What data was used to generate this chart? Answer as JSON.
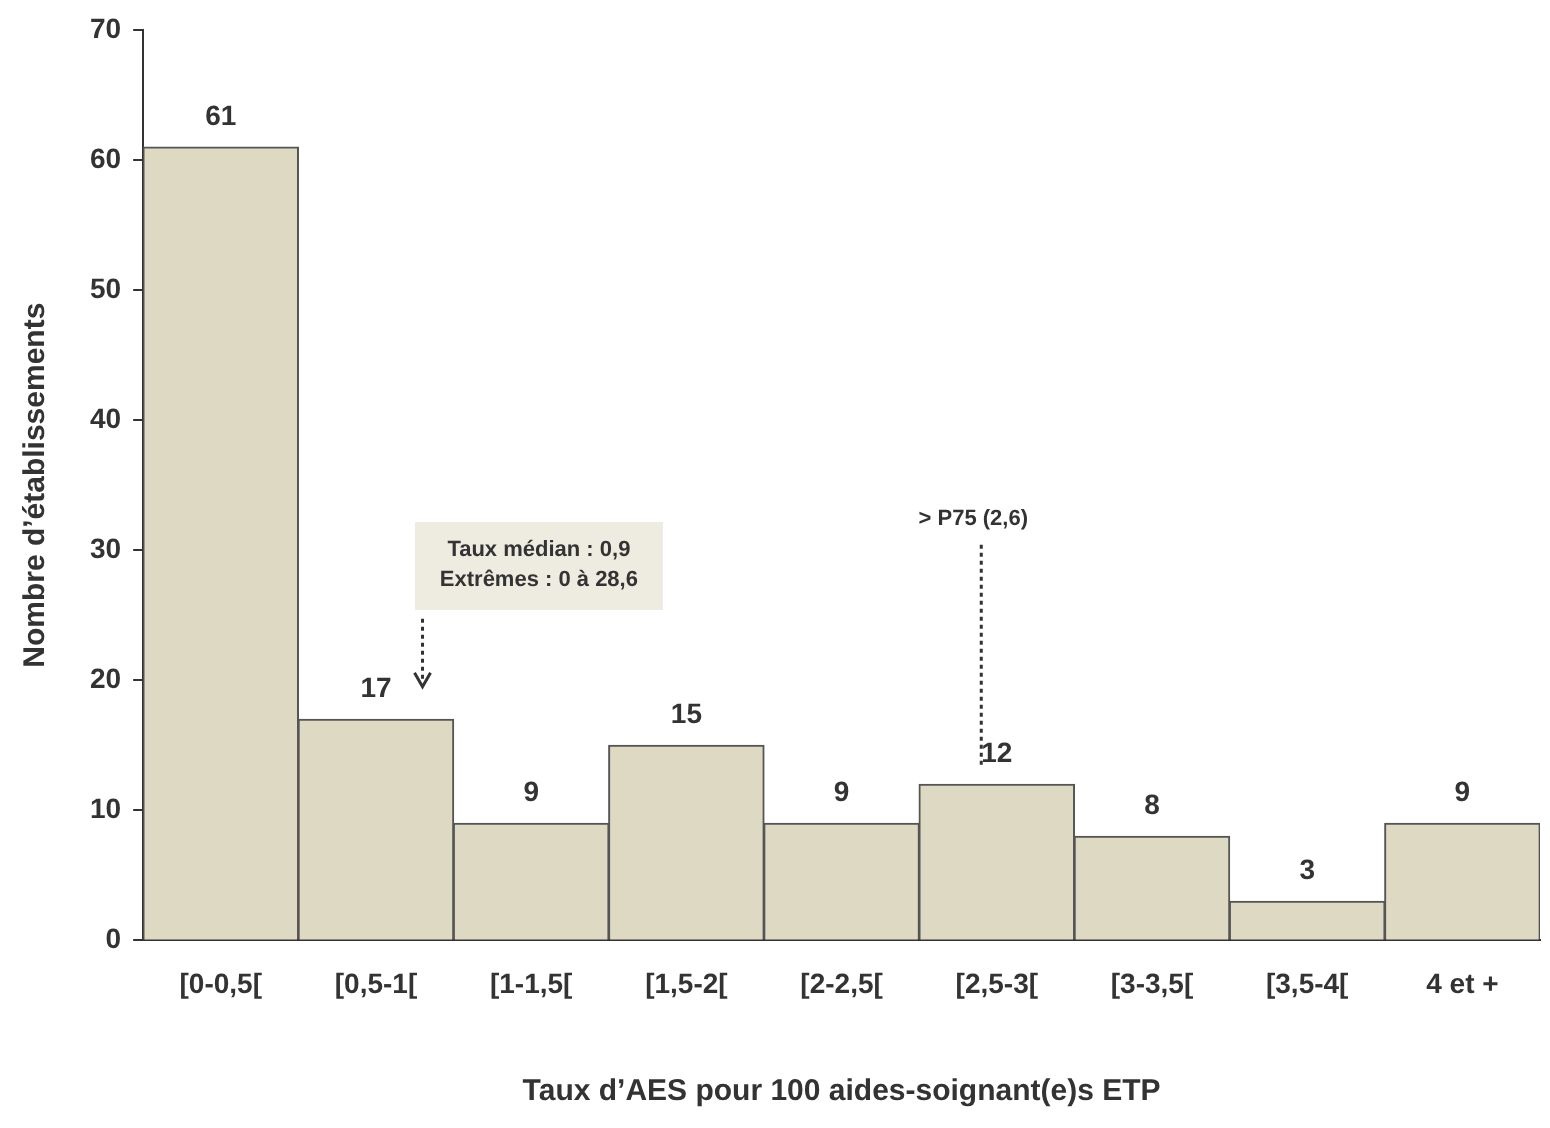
{
  "chart_data": {
    "type": "bar",
    "xlabel": "Taux d’AES pour 100 aides-soignant(e)s ETP",
    "ylabel": "Nombre d’établissements",
    "categories": [
      "[0-0,5[",
      "[0,5-1[",
      "[1-1,5[",
      "[1,5-2[",
      "[2-2,5[",
      "[2,5-3[",
      "[3-3,5[",
      "[3,5-4[",
      "4 et +"
    ],
    "values": [
      61,
      17,
      9,
      15,
      9,
      12,
      8,
      3,
      9
    ],
    "data_labels": true,
    "color": "#ddd9c3",
    "ylim": [
      0,
      70
    ],
    "yticks": [
      0,
      10,
      20,
      30,
      40,
      50,
      60,
      70
    ],
    "grid": false,
    "legend": false,
    "annotations": [
      "Taux médian : 0,9\nExtrêmes : 0 à 28,6",
      "> P75 (2,6)"
    ]
  }
}
